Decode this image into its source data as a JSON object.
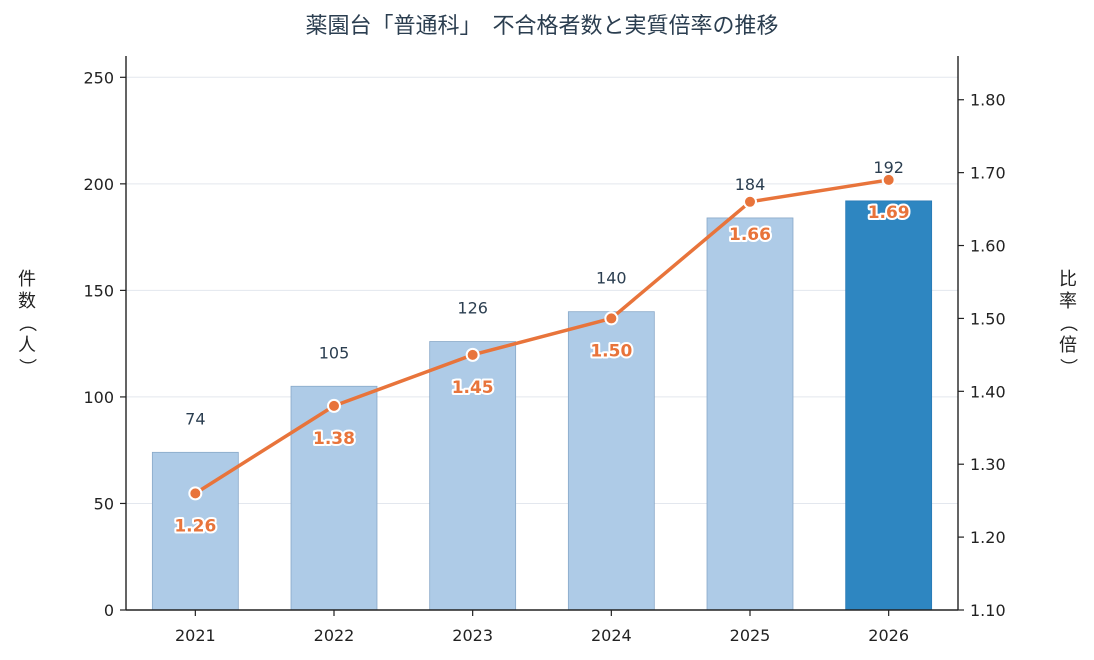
{
  "chart_data": {
    "type": "bar",
    "title": "薬園台「普通科」　不合格者数と実質倍率の推移",
    "categories": [
      "2021",
      "2022",
      "2023",
      "2024",
      "2025",
      "2026"
    ],
    "series": [
      {
        "values": [
          74,
          105,
          126,
          140,
          184,
          192
        ],
        "axis": "left",
        "type": "bar",
        "color": "#aecbe7",
        "highlight_color": "#2e86c1",
        "highlight_index": 5
      },
      {
        "values": [
          1.26,
          1.38,
          1.45,
          1.5,
          1.66,
          1.69
        ],
        "labels": [
          "1.26",
          "1.38",
          "1.45",
          "1.50",
          "1.66",
          "1.69"
        ],
        "axis": "right",
        "type": "line",
        "color": "#e8743b"
      }
    ],
    "ylabel": "件数（人）",
    "y2label": "比率（倍）",
    "ylim": [
      0,
      260
    ],
    "y2lim": [
      1.1,
      1.86
    ],
    "yticks": [
      "0",
      "50",
      "100",
      "150",
      "200",
      "250"
    ],
    "y2ticks": [
      "1.10",
      "1.20",
      "1.30",
      "1.40",
      "1.50",
      "1.60",
      "1.70",
      "1.80"
    ],
    "grid": true,
    "colors": {
      "grid": "#e3e7ee",
      "axis": "#222222"
    }
  }
}
